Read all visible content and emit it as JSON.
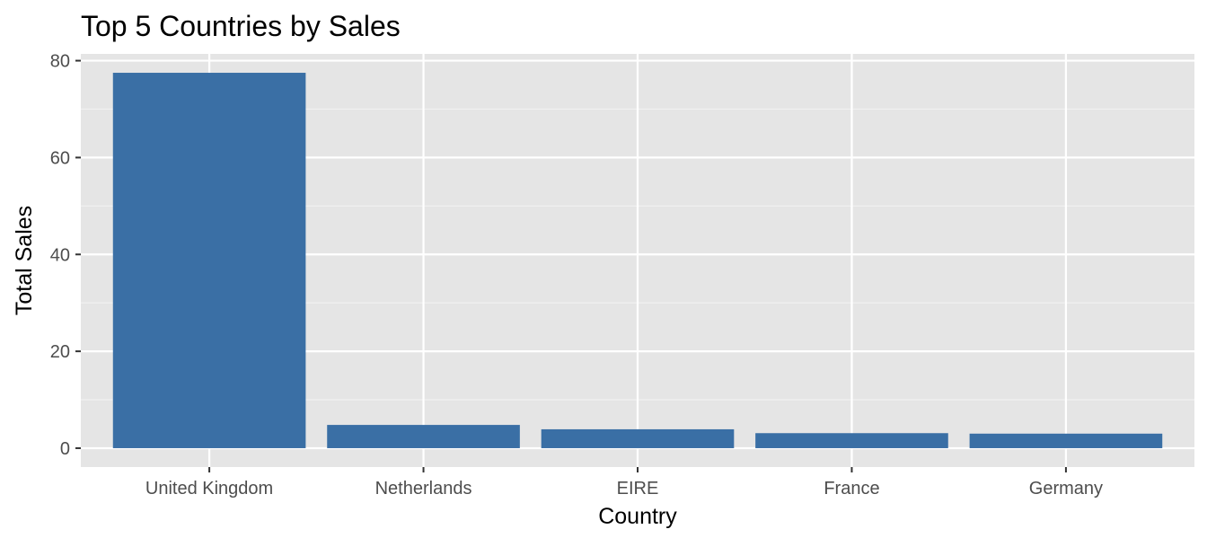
{
  "colors": {
    "panel_background": "#e5e5e5",
    "grid_major": "#ffffff",
    "grid_minor": "#f2f2f2",
    "bar_fill": "#3a6fa5",
    "tick_mark": "#333333",
    "tick_text": "#4d4d4d"
  },
  "chart_data": {
    "type": "bar",
    "title": "Top 5 Countries by Sales",
    "xlabel": "Country",
    "ylabel": "Total Sales",
    "categories": [
      "United Kingdom",
      "Netherlands",
      "EIRE",
      "France",
      "Germany"
    ],
    "values": [
      77.5,
      4.8,
      3.9,
      3.1,
      3.0
    ],
    "ylim": [
      -3.9,
      81.4
    ],
    "yticks": [
      0,
      20,
      40,
      60,
      80
    ],
    "ytick_labels": [
      "0",
      "20",
      "40",
      "60",
      "80"
    ],
    "grid": true,
    "legend": "none"
  }
}
